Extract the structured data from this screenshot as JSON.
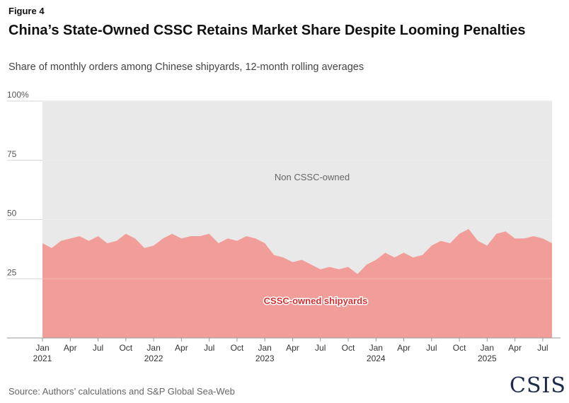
{
  "figure_label": "Figure 4",
  "title": "China’s State-Owned CSSC Retains Market Share Despite Looming Penalties",
  "subtitle": "Share of monthly orders among Chinese shipyards, 12-month rolling averages",
  "source": "Source: Authors’ calculations and S&P Global Sea-Web",
  "logo_text": "CSIS",
  "colors": {
    "cssc_fill": "#f19e9a",
    "non_cssc_fill": "#e8e9e8",
    "label_red": "#d32f2f",
    "grid": "#d6d6d6"
  },
  "chart_data": {
    "type": "area",
    "stacked": true,
    "ylim": [
      0,
      100
    ],
    "yticks": [
      {
        "value": 25,
        "label": "25"
      },
      {
        "value": 50,
        "label": "50"
      },
      {
        "value": 75,
        "label": "75"
      },
      {
        "value": 100,
        "label": "100%"
      }
    ],
    "xticks": [
      {
        "index": 0,
        "month": "Jan",
        "year": "2021"
      },
      {
        "index": 3,
        "month": "Apr",
        "year": ""
      },
      {
        "index": 6,
        "month": "Jul",
        "year": ""
      },
      {
        "index": 9,
        "month": "Oct",
        "year": ""
      },
      {
        "index": 12,
        "month": "Jan",
        "year": "2022"
      },
      {
        "index": 15,
        "month": "Apr",
        "year": ""
      },
      {
        "index": 18,
        "month": "Jul",
        "year": ""
      },
      {
        "index": 21,
        "month": "Oct",
        "year": ""
      },
      {
        "index": 24,
        "month": "Jan",
        "year": "2023"
      },
      {
        "index": 27,
        "month": "Apr",
        "year": ""
      },
      {
        "index": 30,
        "month": "Jul",
        "year": ""
      },
      {
        "index": 33,
        "month": "Oct",
        "year": ""
      },
      {
        "index": 36,
        "month": "Jan",
        "year": "2024"
      },
      {
        "index": 39,
        "month": "Apr",
        "year": ""
      },
      {
        "index": 42,
        "month": "Jul",
        "year": ""
      },
      {
        "index": 45,
        "month": "Oct",
        "year": ""
      },
      {
        "index": 48,
        "month": "Jan",
        "year": "2025"
      },
      {
        "index": 51,
        "month": "Apr",
        "year": ""
      },
      {
        "index": 54,
        "month": "Jul",
        "year": ""
      }
    ],
    "x": [
      "2021-01",
      "2021-02",
      "2021-03",
      "2021-04",
      "2021-05",
      "2021-06",
      "2021-07",
      "2021-08",
      "2021-09",
      "2021-10",
      "2021-11",
      "2021-12",
      "2022-01",
      "2022-02",
      "2022-03",
      "2022-04",
      "2022-05",
      "2022-06",
      "2022-07",
      "2022-08",
      "2022-09",
      "2022-10",
      "2022-11",
      "2022-12",
      "2023-01",
      "2023-02",
      "2023-03",
      "2023-04",
      "2023-05",
      "2023-06",
      "2023-07",
      "2023-08",
      "2023-09",
      "2023-10",
      "2023-11",
      "2023-12",
      "2024-01",
      "2024-02",
      "2024-03",
      "2024-04",
      "2024-05",
      "2024-06",
      "2024-07",
      "2024-08",
      "2024-09",
      "2024-10",
      "2024-11",
      "2024-12",
      "2025-01",
      "2025-02",
      "2025-03",
      "2025-04",
      "2025-05",
      "2025-06",
      "2025-07",
      "2025-08"
    ],
    "series": [
      {
        "name": "CSSC-owned shipyards",
        "values": [
          40,
          38,
          41,
          42,
          43,
          41,
          43,
          40,
          41,
          44,
          42,
          38,
          39,
          42,
          44,
          42,
          43,
          43,
          44,
          40,
          42,
          41,
          43,
          42,
          40,
          35,
          34,
          32,
          33,
          31,
          29,
          30,
          29,
          30,
          27,
          31,
          33,
          36,
          34,
          36,
          34,
          35,
          39,
          41,
          40,
          44,
          46,
          41,
          39,
          44,
          45,
          42,
          42,
          43,
          42,
          40
        ]
      },
      {
        "name": "Non CSSC-owned",
        "values": [
          60,
          62,
          59,
          58,
          57,
          59,
          57,
          60,
          59,
          56,
          58,
          62,
          61,
          58,
          56,
          58,
          57,
          57,
          56,
          60,
          58,
          59,
          57,
          58,
          60,
          65,
          66,
          68,
          67,
          69,
          71,
          70,
          71,
          70,
          73,
          69,
          67,
          64,
          66,
          64,
          66,
          65,
          61,
          59,
          60,
          56,
          54,
          59,
          61,
          56,
          55,
          58,
          58,
          57,
          58,
          60
        ]
      }
    ]
  }
}
